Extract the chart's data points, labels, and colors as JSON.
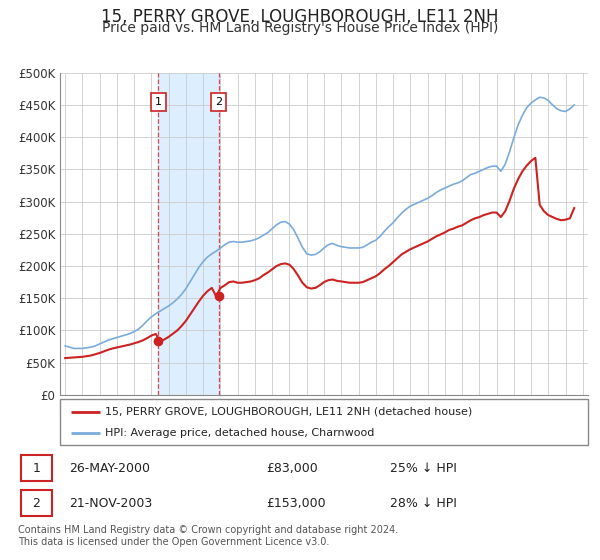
{
  "title": "15, PERRY GROVE, LOUGHBOROUGH, LE11 2NH",
  "subtitle": "Price paid vs. HM Land Registry's House Price Index (HPI)",
  "title_fontsize": 12,
  "subtitle_fontsize": 10,
  "ylim": [
    0,
    500000
  ],
  "yticks": [
    0,
    50000,
    100000,
    150000,
    200000,
    250000,
    300000,
    350000,
    400000,
    450000,
    500000
  ],
  "ytick_labels": [
    "£0",
    "£50K",
    "£100K",
    "£150K",
    "£200K",
    "£250K",
    "£300K",
    "£350K",
    "£400K",
    "£450K",
    "£500K"
  ],
  "xlim_start": 1994.7,
  "xlim_end": 2025.3,
  "transaction1": {
    "date": 2000.4,
    "price": 83000,
    "label": "1",
    "display": "26-MAY-2000",
    "price_str": "£83,000",
    "pct": "25% ↓ HPI"
  },
  "transaction2": {
    "date": 2003.9,
    "price": 153000,
    "label": "2",
    "display": "21-NOV-2003",
    "price_str": "£153,000",
    "pct": "28% ↓ HPI"
  },
  "hpi_color": "#7aabdc",
  "price_color": "#cc2222",
  "shade_color": "#ddeeff",
  "grid_color": "#cccccc",
  "marker_box_color": "#cc2222",
  "legend_label_property": "15, PERRY GROVE, LOUGHBOROUGH, LE11 2NH (detached house)",
  "legend_label_hpi": "HPI: Average price, detached house, Charnwood",
  "footer": "Contains HM Land Registry data © Crown copyright and database right 2024.\nThis data is licensed under the Open Government Licence v3.0.",
  "hpi_data_x": [
    1995.0,
    1995.25,
    1995.5,
    1995.75,
    1996.0,
    1996.25,
    1996.5,
    1996.75,
    1997.0,
    1997.25,
    1997.5,
    1997.75,
    1998.0,
    1998.25,
    1998.5,
    1998.75,
    1999.0,
    1999.25,
    1999.5,
    1999.75,
    2000.0,
    2000.25,
    2000.5,
    2000.75,
    2001.0,
    2001.25,
    2001.5,
    2001.75,
    2002.0,
    2002.25,
    2002.5,
    2002.75,
    2003.0,
    2003.25,
    2003.5,
    2003.75,
    2004.0,
    2004.25,
    2004.5,
    2004.75,
    2005.0,
    2005.25,
    2005.5,
    2005.75,
    2006.0,
    2006.25,
    2006.5,
    2006.75,
    2007.0,
    2007.25,
    2007.5,
    2007.75,
    2008.0,
    2008.25,
    2008.5,
    2008.75,
    2009.0,
    2009.25,
    2009.5,
    2009.75,
    2010.0,
    2010.25,
    2010.5,
    2010.75,
    2011.0,
    2011.25,
    2011.5,
    2011.75,
    2012.0,
    2012.25,
    2012.5,
    2012.75,
    2013.0,
    2013.25,
    2013.5,
    2013.75,
    2014.0,
    2014.25,
    2014.5,
    2014.75,
    2015.0,
    2015.25,
    2015.5,
    2015.75,
    2016.0,
    2016.25,
    2016.5,
    2016.75,
    2017.0,
    2017.25,
    2017.5,
    2017.75,
    2018.0,
    2018.25,
    2018.5,
    2018.75,
    2019.0,
    2019.25,
    2019.5,
    2019.75,
    2020.0,
    2020.25,
    2020.5,
    2020.75,
    2021.0,
    2021.25,
    2021.5,
    2021.75,
    2022.0,
    2022.25,
    2022.5,
    2022.75,
    2023.0,
    2023.25,
    2023.5,
    2023.75,
    2024.0,
    2024.25,
    2024.5
  ],
  "hpi_data_y": [
    76000,
    74000,
    72000,
    72000,
    72000,
    73000,
    74000,
    76000,
    79000,
    82000,
    85000,
    87000,
    89000,
    91000,
    93000,
    95000,
    98000,
    102000,
    108000,
    115000,
    121000,
    126000,
    130000,
    134000,
    138000,
    143000,
    149000,
    156000,
    165000,
    176000,
    187000,
    198000,
    207000,
    214000,
    219000,
    223000,
    228000,
    233000,
    237000,
    238000,
    237000,
    237000,
    238000,
    239000,
    241000,
    244000,
    248000,
    252000,
    258000,
    264000,
    268000,
    269000,
    265000,
    256000,
    243000,
    229000,
    219000,
    217000,
    218000,
    222000,
    228000,
    233000,
    235000,
    232000,
    230000,
    229000,
    228000,
    228000,
    228000,
    229000,
    233000,
    237000,
    240000,
    246000,
    254000,
    261000,
    267000,
    275000,
    282000,
    288000,
    293000,
    296000,
    299000,
    302000,
    305000,
    309000,
    314000,
    318000,
    321000,
    324000,
    327000,
    329000,
    332000,
    337000,
    342000,
    344000,
    347000,
    350000,
    353000,
    355000,
    355000,
    347000,
    358000,
    377000,
    399000,
    419000,
    434000,
    446000,
    453000,
    458000,
    462000,
    461000,
    457000,
    450000,
    444000,
    441000,
    440000,
    444000,
    450000
  ],
  "price_data_x": [
    1995.0,
    1995.25,
    1995.5,
    1995.75,
    1996.0,
    1996.25,
    1996.5,
    1996.75,
    1997.0,
    1997.25,
    1997.5,
    1997.75,
    1998.0,
    1998.25,
    1998.5,
    1998.75,
    1999.0,
    1999.25,
    1999.5,
    1999.75,
    2000.0,
    2000.25,
    2000.5,
    2000.75,
    2001.0,
    2001.25,
    2001.5,
    2001.75,
    2002.0,
    2002.25,
    2002.5,
    2002.75,
    2003.0,
    2003.25,
    2003.5,
    2003.75,
    2004.0,
    2004.25,
    2004.5,
    2004.75,
    2005.0,
    2005.25,
    2005.5,
    2005.75,
    2006.0,
    2006.25,
    2006.5,
    2006.75,
    2007.0,
    2007.25,
    2007.5,
    2007.75,
    2008.0,
    2008.25,
    2008.5,
    2008.75,
    2009.0,
    2009.25,
    2009.5,
    2009.75,
    2010.0,
    2010.25,
    2010.5,
    2010.75,
    2011.0,
    2011.25,
    2011.5,
    2011.75,
    2012.0,
    2012.25,
    2012.5,
    2012.75,
    2013.0,
    2013.25,
    2013.5,
    2013.75,
    2014.0,
    2014.25,
    2014.5,
    2014.75,
    2015.0,
    2015.25,
    2015.5,
    2015.75,
    2016.0,
    2016.25,
    2016.5,
    2016.75,
    2017.0,
    2017.25,
    2017.5,
    2017.75,
    2018.0,
    2018.25,
    2018.5,
    2018.75,
    2019.0,
    2019.25,
    2019.5,
    2019.75,
    2020.0,
    2020.25,
    2020.5,
    2020.75,
    2021.0,
    2021.25,
    2021.5,
    2021.75,
    2022.0,
    2022.25,
    2022.5,
    2022.75,
    2023.0,
    2023.25,
    2023.5,
    2023.75,
    2024.0,
    2024.25,
    2024.5
  ],
  "price_data_y": [
    57000,
    57500,
    58000,
    58500,
    59000,
    60000,
    61000,
    63000,
    65000,
    67500,
    70000,
    72000,
    73500,
    75000,
    76500,
    78000,
    80000,
    82000,
    84500,
    88000,
    92000,
    94500,
    83000,
    86000,
    90000,
    95000,
    100000,
    107000,
    115000,
    125000,
    135000,
    145000,
    154000,
    161000,
    166000,
    153000,
    166000,
    170000,
    175000,
    176000,
    174000,
    174000,
    175000,
    176000,
    178000,
    181000,
    186000,
    190000,
    195000,
    200000,
    203000,
    204000,
    202000,
    195000,
    185000,
    174000,
    167000,
    165000,
    166000,
    170000,
    175000,
    178000,
    179000,
    177000,
    176000,
    175000,
    174000,
    174000,
    174000,
    175000,
    178000,
    181000,
    184000,
    189000,
    195000,
    200000,
    206000,
    212000,
    218000,
    222000,
    226000,
    229000,
    232000,
    235000,
    238000,
    242000,
    246000,
    249000,
    252000,
    256000,
    258000,
    261000,
    263000,
    267000,
    271000,
    274000,
    276000,
    279000,
    281000,
    283000,
    283000,
    276000,
    285000,
    301000,
    320000,
    335000,
    347000,
    356000,
    363000,
    368000,
    295000,
    285000,
    279000,
    276000,
    273000,
    271000,
    272000,
    274000,
    290000
  ]
}
